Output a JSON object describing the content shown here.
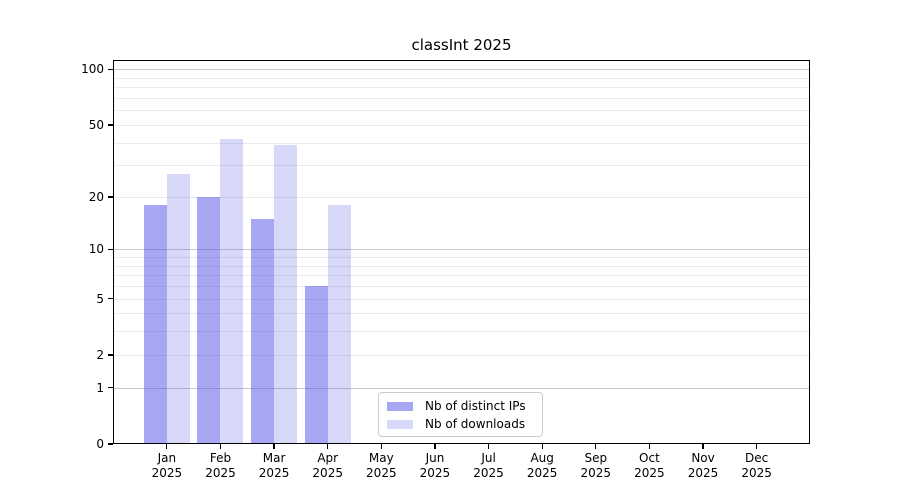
{
  "title": "classInt 2025",
  "chart_data": {
    "type": "bar",
    "title": "classInt 2025",
    "months": [
      "Jan",
      "Feb",
      "Mar",
      "Apr",
      "May",
      "Jun",
      "Jul",
      "Aug",
      "Sep",
      "Oct",
      "Nov",
      "Dec"
    ],
    "year": "2025",
    "categories": [
      "Jan 2025",
      "Feb 2025",
      "Mar 2025",
      "Apr 2025",
      "May 2025",
      "Jun 2025",
      "Jul 2025",
      "Aug 2025",
      "Sep 2025",
      "Oct 2025",
      "Nov 2025",
      "Dec 2025"
    ],
    "series": [
      {
        "name": "Nb of distinct IPs",
        "color_hex": "#a6a6f0",
        "color_rgba": "rgba(85,85,230,0.52)",
        "values": [
          18,
          20,
          15,
          6,
          null,
          null,
          null,
          null,
          null,
          null,
          null,
          null
        ]
      },
      {
        "name": "Nb of downloads",
        "color_hex": "#d8d8f8",
        "color_rgba": "rgba(85,85,230,0.23)",
        "values": [
          27,
          42,
          39,
          18,
          null,
          null,
          null,
          null,
          null,
          null,
          null,
          null
        ]
      }
    ],
    "yscale": "log1p",
    "ylim": [
      0,
      100
    ],
    "yticks": [
      0,
      1,
      2,
      5,
      10,
      20,
      50,
      100
    ],
    "gridlines": {
      "major": [
        1,
        10,
        100
      ],
      "minor": [
        2,
        3,
        4,
        5,
        6,
        7,
        8,
        9,
        20,
        30,
        40,
        50,
        60,
        70,
        80,
        90
      ]
    },
    "grid": true,
    "legend_position": "lower center",
    "xlabel": "",
    "ylabel": ""
  },
  "colors": {
    "axis": "#000000",
    "grid_major": "#c8c8c8",
    "grid_minor": "#ebebeb",
    "legend_border": "#cccccc",
    "background": "#ffffff"
  }
}
